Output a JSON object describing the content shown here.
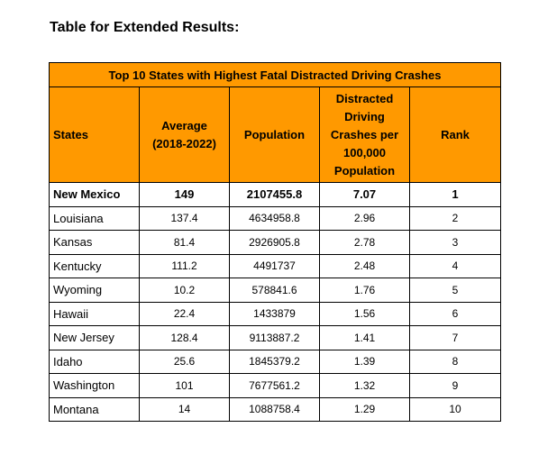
{
  "heading": "Table for Extended Results:",
  "table": {
    "banner": "Top 10 States with Highest Fatal Distracted Driving Crashes",
    "columns": {
      "states": "States",
      "average": "Average (2018-2022)",
      "population": "Population",
      "rate": "Distracted Driving Crashes per 100,000 Population",
      "rank": "Rank"
    },
    "rows": [
      {
        "state": "New Mexico",
        "average": "149",
        "population": "2107455.8",
        "rate": "7.07",
        "rank": "1"
      },
      {
        "state": "Louisiana",
        "average": "137.4",
        "population": "4634958.8",
        "rate": "2.96",
        "rank": "2"
      },
      {
        "state": "Kansas",
        "average": "81.4",
        "population": "2926905.8",
        "rate": "2.78",
        "rank": "3"
      },
      {
        "state": "Kentucky",
        "average": "111.2",
        "population": "4491737",
        "rate": "2.48",
        "rank": "4"
      },
      {
        "state": "Wyoming",
        "average": "10.2",
        "population": "578841.6",
        "rate": "1.76",
        "rank": "5"
      },
      {
        "state": "Hawaii",
        "average": "22.4",
        "population": "1433879",
        "rate": "1.56",
        "rank": "6"
      },
      {
        "state": "New Jersey",
        "average": "128.4",
        "population": "9113887.2",
        "rate": "1.41",
        "rank": "7"
      },
      {
        "state": "Idaho",
        "average": "25.6",
        "population": "1845379.2",
        "rate": "1.39",
        "rank": "8"
      },
      {
        "state": "Washington",
        "average": "101",
        "population": "7677561.2",
        "rate": "1.32",
        "rank": "9"
      },
      {
        "state": "Montana",
        "average": "14",
        "population": "1088758.4",
        "rate": "1.29",
        "rank": "10"
      }
    ],
    "header_color": "#ff9900"
  }
}
